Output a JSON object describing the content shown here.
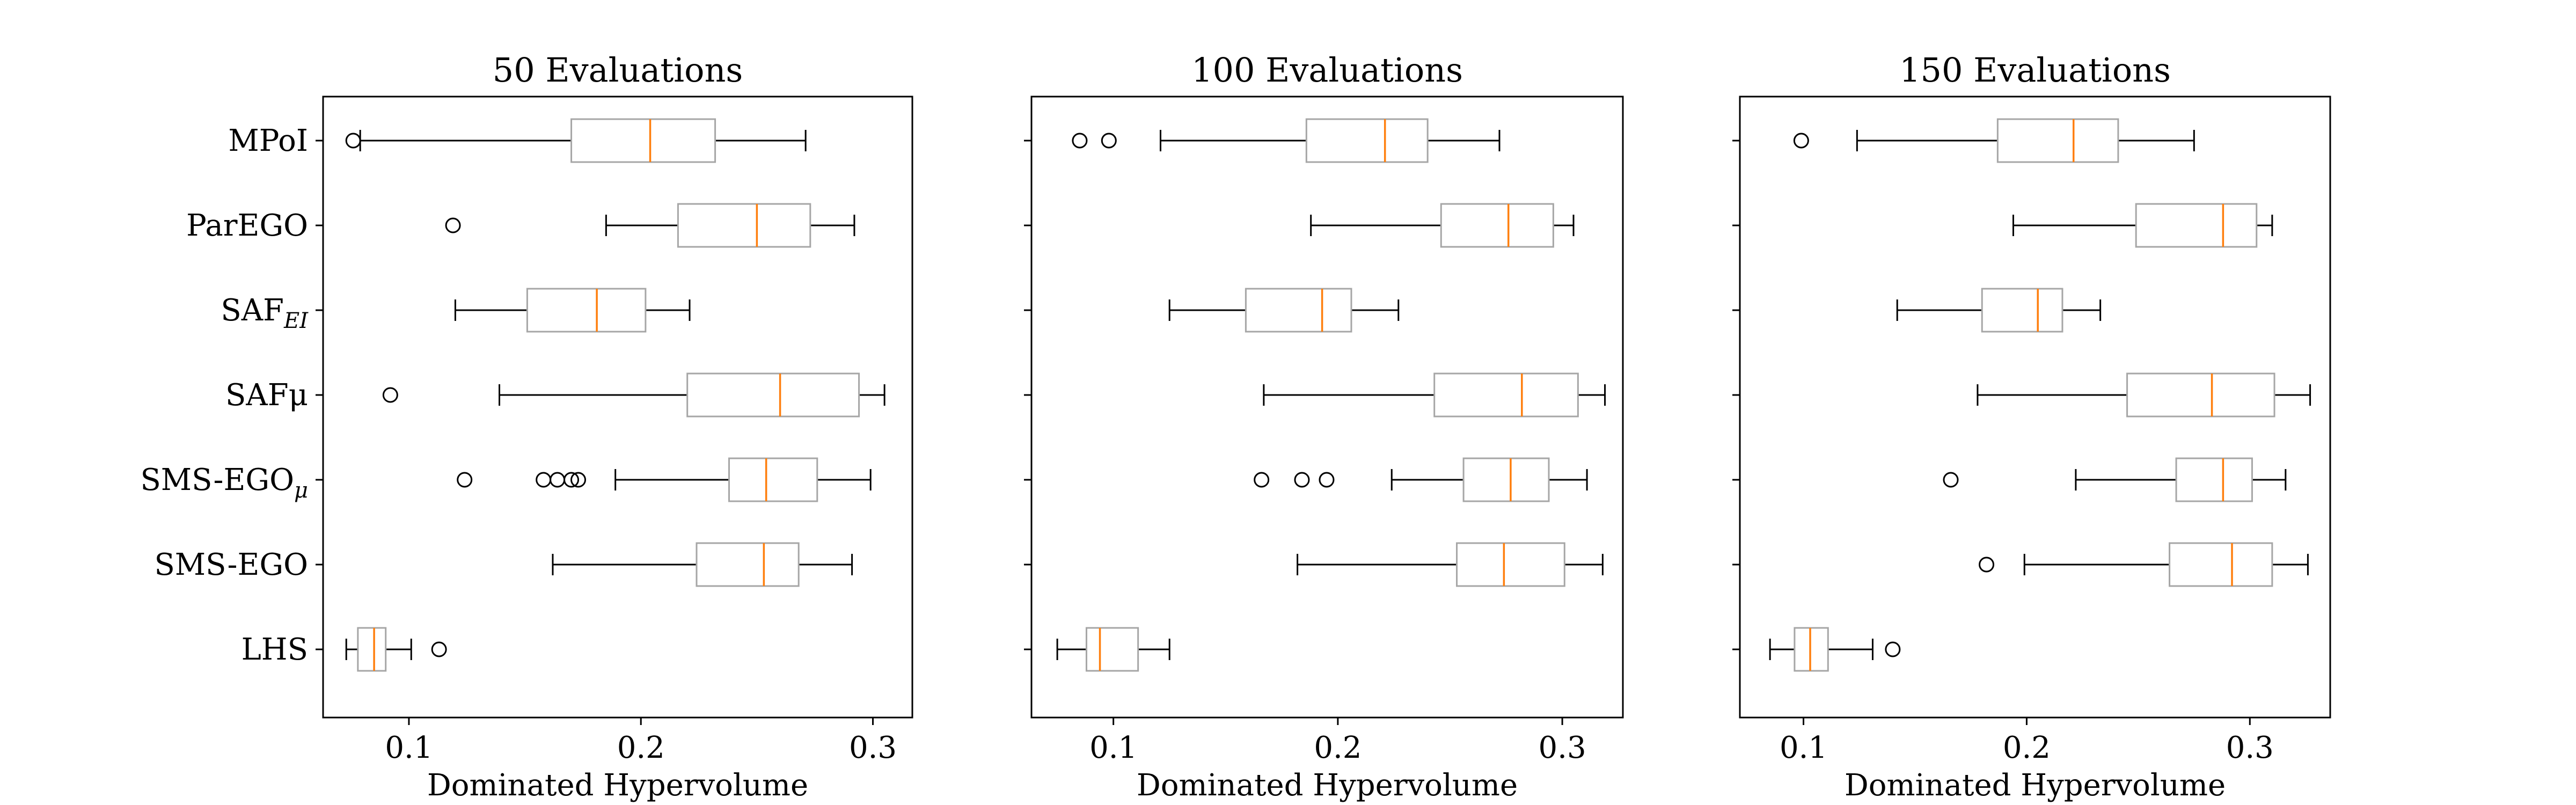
{
  "chart_data": [
    {
      "type": "box",
      "orientation": "horizontal",
      "title": "50 Evaluations",
      "xlabel": "Dominated Hypervolume",
      "xlim": [
        0.063,
        0.317
      ],
      "xticks": [
        0.1,
        0.2,
        0.3
      ],
      "xtick_labels": [
        "0.1",
        "0.2",
        "0.3"
      ],
      "show_ytick_labels": true,
      "boxes": [
        {
          "label": "MPoI",
          "whisker_low": 0.079,
          "q1": 0.17,
          "median": 0.204,
          "q3": 0.232,
          "whisker_high": 0.271,
          "outliers": [
            0.076
          ]
        },
        {
          "label": "ParEGO",
          "whisker_low": 0.185,
          "q1": 0.216,
          "median": 0.25,
          "q3": 0.273,
          "whisker_high": 0.292,
          "outliers": [
            0.119
          ]
        },
        {
          "label": "SAF",
          "sub": "EI",
          "whisker_low": 0.12,
          "q1": 0.151,
          "median": 0.181,
          "q3": 0.202,
          "whisker_high": 0.221,
          "outliers": []
        },
        {
          "label": "SAFμ",
          "whisker_low": 0.139,
          "q1": 0.22,
          "median": 0.26,
          "q3": 0.294,
          "whisker_high": 0.305,
          "outliers": [
            0.092
          ]
        },
        {
          "label": "SMS-EGO",
          "sub": "μ",
          "whisker_low": 0.189,
          "q1": 0.238,
          "median": 0.254,
          "q3": 0.276,
          "whisker_high": 0.299,
          "outliers": [
            0.124,
            0.158,
            0.164,
            0.17,
            0.173
          ]
        },
        {
          "label": "SMS-EGO",
          "whisker_low": 0.162,
          "q1": 0.224,
          "median": 0.253,
          "q3": 0.268,
          "whisker_high": 0.291,
          "outliers": []
        },
        {
          "label": "LHS",
          "whisker_low": 0.073,
          "q1": 0.078,
          "median": 0.085,
          "q3": 0.09,
          "whisker_high": 0.101,
          "outliers": [
            0.113
          ]
        }
      ]
    },
    {
      "type": "box",
      "orientation": "horizontal",
      "title": "100 Evaluations",
      "xlabel": "Dominated Hypervolume",
      "xlim": [
        0.0635,
        0.327
      ],
      "xticks": [
        0.1,
        0.2,
        0.3
      ],
      "xtick_labels": [
        "0.1",
        "0.2",
        "0.3"
      ],
      "show_ytick_labels": false,
      "boxes": [
        {
          "label": "MPoI",
          "whisker_low": 0.121,
          "q1": 0.186,
          "median": 0.221,
          "q3": 0.24,
          "whisker_high": 0.272,
          "outliers": [
            0.085,
            0.098
          ]
        },
        {
          "label": "ParEGO",
          "whisker_low": 0.188,
          "q1": 0.246,
          "median": 0.276,
          "q3": 0.296,
          "whisker_high": 0.305,
          "outliers": []
        },
        {
          "label": "SAF",
          "sub": "EI",
          "whisker_low": 0.125,
          "q1": 0.159,
          "median": 0.193,
          "q3": 0.206,
          "whisker_high": 0.227,
          "outliers": []
        },
        {
          "label": "SAFμ",
          "whisker_low": 0.167,
          "q1": 0.243,
          "median": 0.282,
          "q3": 0.307,
          "whisker_high": 0.319,
          "outliers": []
        },
        {
          "label": "SMS-EGO",
          "sub": "μ",
          "whisker_low": 0.224,
          "q1": 0.256,
          "median": 0.277,
          "q3": 0.294,
          "whisker_high": 0.311,
          "outliers": [
            0.166,
            0.184,
            0.195
          ]
        },
        {
          "label": "SMS-EGO",
          "whisker_low": 0.182,
          "q1": 0.253,
          "median": 0.274,
          "q3": 0.301,
          "whisker_high": 0.318,
          "outliers": []
        },
        {
          "label": "LHS",
          "whisker_low": 0.075,
          "q1": 0.088,
          "median": 0.094,
          "q3": 0.111,
          "whisker_high": 0.125,
          "outliers": []
        }
      ]
    },
    {
      "type": "box",
      "orientation": "horizontal",
      "title": "150 Evaluations",
      "xlabel": "Dominated Hypervolume",
      "xlim": [
        0.0715,
        0.336
      ],
      "xticks": [
        0.1,
        0.2,
        0.3
      ],
      "xtick_labels": [
        "0.1",
        "0.2",
        "0.3"
      ],
      "show_ytick_labels": false,
      "boxes": [
        {
          "label": "MPoI",
          "whisker_low": 0.124,
          "q1": 0.187,
          "median": 0.221,
          "q3": 0.241,
          "whisker_high": 0.275,
          "outliers": [
            0.099
          ]
        },
        {
          "label": "ParEGO",
          "whisker_low": 0.194,
          "q1": 0.249,
          "median": 0.288,
          "q3": 0.303,
          "whisker_high": 0.31,
          "outliers": []
        },
        {
          "label": "SAF",
          "sub": "EI",
          "whisker_low": 0.142,
          "q1": 0.18,
          "median": 0.205,
          "q3": 0.216,
          "whisker_high": 0.233,
          "outliers": []
        },
        {
          "label": "SAFμ",
          "whisker_low": 0.178,
          "q1": 0.245,
          "median": 0.283,
          "q3": 0.311,
          "whisker_high": 0.327,
          "outliers": []
        },
        {
          "label": "SMS-EGO",
          "sub": "μ",
          "whisker_low": 0.222,
          "q1": 0.267,
          "median": 0.288,
          "q3": 0.301,
          "whisker_high": 0.316,
          "outliers": [
            0.166
          ]
        },
        {
          "label": "SMS-EGO",
          "whisker_low": 0.199,
          "q1": 0.264,
          "median": 0.292,
          "q3": 0.31,
          "whisker_high": 0.326,
          "outliers": [
            0.182
          ]
        },
        {
          "label": "LHS",
          "whisker_low": 0.085,
          "q1": 0.096,
          "median": 0.103,
          "q3": 0.111,
          "whisker_high": 0.131,
          "outliers": [
            0.14
          ]
        }
      ]
    }
  ],
  "colors": {
    "box_edge": "#a6a6a6",
    "median": "#ff7f0e",
    "whisker": "#000000",
    "axes": "#000000",
    "background": "#ffffff"
  }
}
